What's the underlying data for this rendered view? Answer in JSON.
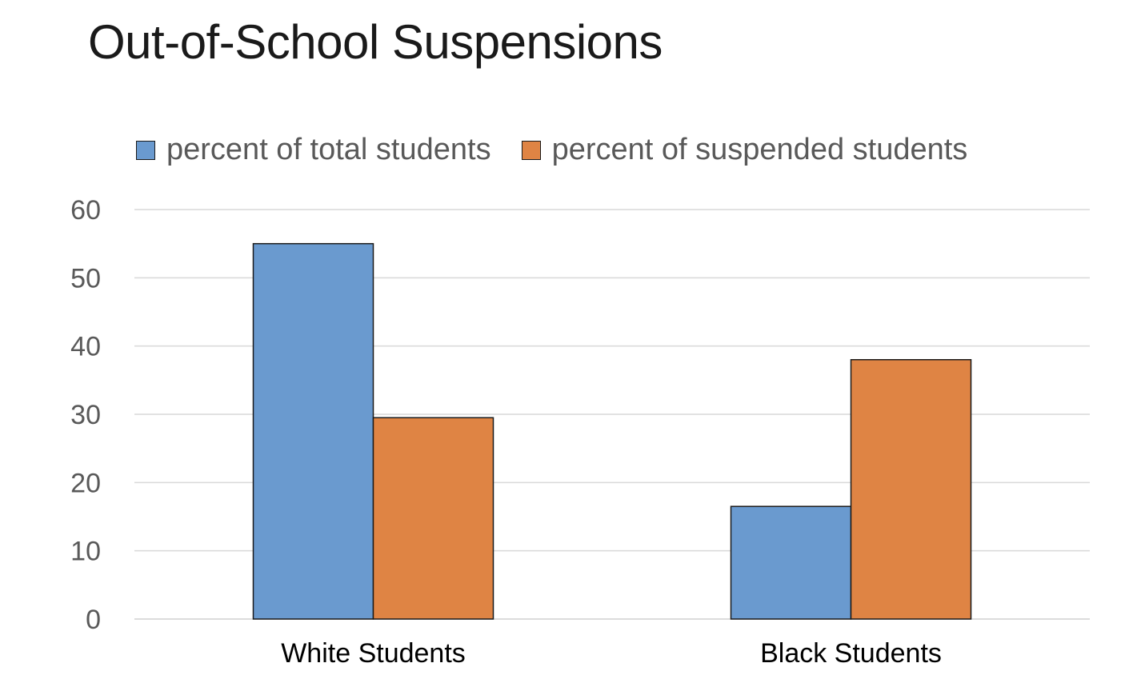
{
  "chart_data": {
    "type": "bar",
    "title": "Out-of-School Suspensions",
    "categories": [
      "White Students",
      "Black Students"
    ],
    "series": [
      {
        "name": "percent of total students",
        "color": "#6a9acf",
        "values": [
          55,
          16.5
        ]
      },
      {
        "name": "percent of suspended students",
        "color": "#df8444",
        "values": [
          29.5,
          38
        ]
      }
    ],
    "ylim": [
      0,
      60
    ],
    "yticks": [
      "0",
      "10",
      "20",
      "30",
      "40",
      "50",
      "60"
    ],
    "xlabel": "",
    "ylabel": "",
    "grid": true,
    "legend_position": "top"
  }
}
